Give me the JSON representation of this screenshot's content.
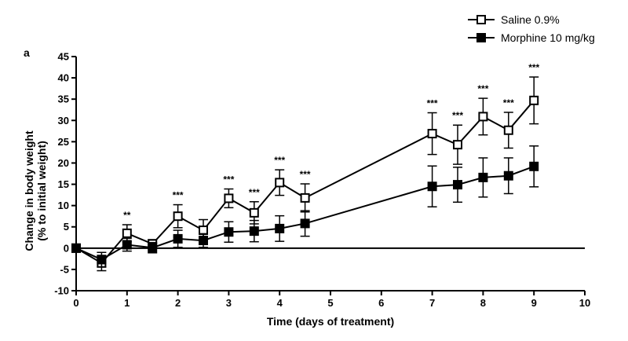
{
  "chart_data": {
    "type": "line",
    "panel_label": "a",
    "xlabel": "Time (days of treatment)",
    "ylabel_lines": [
      "Change in body weight",
      "(% to initial weight)"
    ],
    "xlim": [
      0,
      10
    ],
    "ylim": [
      -10,
      45
    ],
    "xticks": [
      0,
      1,
      2,
      3,
      4,
      5,
      6,
      7,
      8,
      9,
      10
    ],
    "yticks": [
      -10,
      -5,
      0,
      5,
      10,
      15,
      20,
      25,
      30,
      35,
      40,
      45
    ],
    "grid": false,
    "legend_position": "top-right",
    "series": [
      {
        "name": "Saline 0.9%",
        "marker": "open-square",
        "color": "#000000",
        "x": [
          0,
          0.5,
          1,
          1.5,
          2,
          2.5,
          3,
          3.5,
          4,
          4.5,
          7,
          7.5,
          8,
          8.5,
          9
        ],
        "y": [
          0,
          -3.5,
          3.5,
          1.0,
          7.5,
          4.2,
          11.7,
          8.3,
          15.4,
          11.8,
          26.9,
          24.3,
          30.9,
          27.7,
          34.7
        ],
        "err": [
          0,
          1.8,
          2.0,
          1.0,
          2.7,
          2.5,
          2.2,
          2.6,
          3.0,
          3.3,
          4.9,
          4.6,
          4.3,
          4.2,
          5.5
        ]
      },
      {
        "name": "Morphine 10 mg/kg",
        "marker": "filled-square",
        "color": "#000000",
        "x": [
          0,
          0.5,
          1,
          1.5,
          2,
          2.5,
          3,
          3.5,
          4,
          4.5,
          7,
          7.5,
          8,
          8.5,
          9
        ],
        "y": [
          0,
          -2.7,
          0.8,
          0.1,
          2.2,
          1.8,
          3.8,
          4.0,
          4.6,
          5.8,
          14.5,
          14.9,
          16.6,
          17.0,
          19.2
        ],
        "err": [
          0,
          1.7,
          1.5,
          1.2,
          2.0,
          1.6,
          2.4,
          2.5,
          3.0,
          3.0,
          4.8,
          4.1,
          4.6,
          4.2,
          4.8
        ]
      }
    ],
    "significance": [
      {
        "x": 1,
        "text": "**"
      },
      {
        "x": 2,
        "text": "***"
      },
      {
        "x": 3,
        "text": "***"
      },
      {
        "x": 3.5,
        "text": "***"
      },
      {
        "x": 4,
        "text": "***"
      },
      {
        "x": 4.5,
        "text": "***"
      },
      {
        "x": 7,
        "text": "***"
      },
      {
        "x": 7.5,
        "text": "***"
      },
      {
        "x": 8,
        "text": "***"
      },
      {
        "x": 8.5,
        "text": "***"
      },
      {
        "x": 9,
        "text": "***"
      }
    ]
  }
}
